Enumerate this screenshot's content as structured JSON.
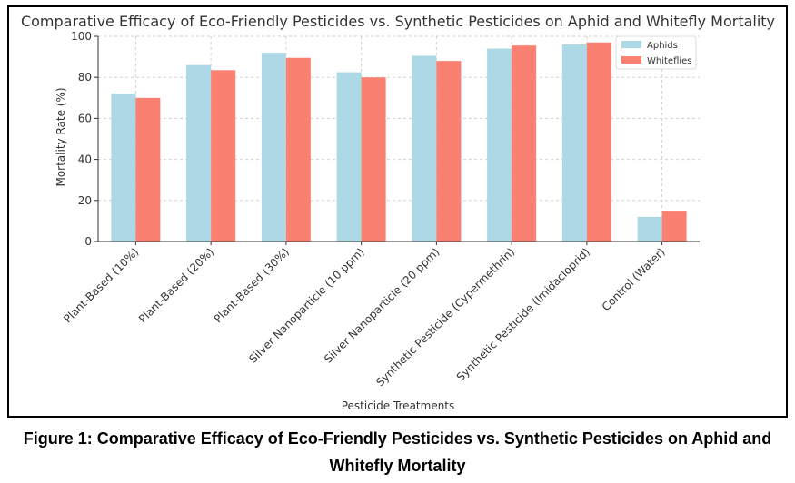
{
  "chart_data": {
    "type": "bar",
    "title": "Comparative Efficacy of Eco-Friendly Pesticides vs. Synthetic Pesticides on Aphid and Whitefly Mortality",
    "xlabel": "Pesticide Treatments",
    "ylabel": "Mortality Rate (%)",
    "ylim": [
      0,
      100
    ],
    "yticks": [
      0,
      20,
      40,
      60,
      80,
      100
    ],
    "grid": true,
    "legend_position": "top-right",
    "categories": [
      "Plant-Based (10%)",
      "Plant-Based (20%)",
      "Plant-Based (30%)",
      "Silver Nanoparticle (10 ppm)",
      "Silver Nanoparticle (20 ppm)",
      "Synthetic Pesticide (Cypermethrin)",
      "Synthetic Pesticide (Imidacloprid)",
      "Control (Water)"
    ],
    "series": [
      {
        "name": "Aphids",
        "color": "#add8e6",
        "values": [
          72,
          86,
          92,
          82.5,
          90.5,
          94,
          96,
          12
        ]
      },
      {
        "name": "Whiteflies",
        "color": "#fa8072",
        "values": [
          70,
          83.5,
          89.5,
          80,
          88,
          95.5,
          97,
          15
        ]
      }
    ]
  },
  "caption": "Figure 1: Comparative Efficacy of Eco-Friendly Pesticides vs. Synthetic Pesticides on Aphid and Whitefly Mortality"
}
